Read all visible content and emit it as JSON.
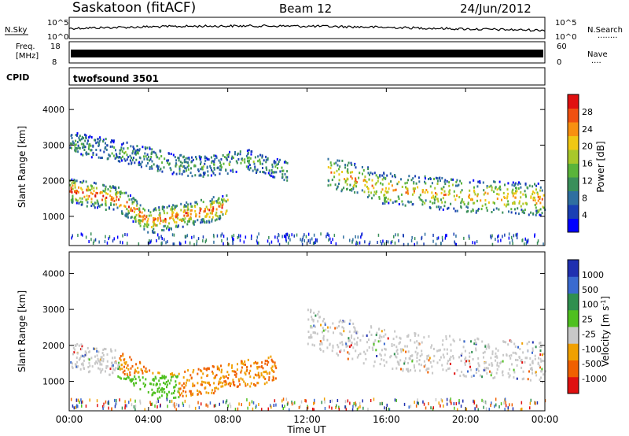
{
  "header": {
    "station": "Saskatoon (fitACF)",
    "beam": "Beam 12",
    "date": "24/Jun/2012"
  },
  "noise_panel": {
    "left_label": "N.Sky",
    "right_label": "N.Search",
    "right_legend": "........",
    "left_ticks": [
      "10^5",
      "10^0"
    ],
    "right_ticks": [
      "10^5",
      "10^0"
    ]
  },
  "freq_panel": {
    "left_label_top": "Freq.",
    "left_label_unit": "[MHz]",
    "left_ticks": [
      "18",
      "8"
    ],
    "right_label": "Nave",
    "right_legend": "....",
    "right_ticks": [
      "60",
      "0"
    ]
  },
  "cpid_panel": {
    "label": "CPID",
    "value": "twofsound 3501"
  },
  "chart_data": [
    {
      "type": "heatmap",
      "name": "Power",
      "ylabel": "Slant Range [km]",
      "ylim": [
        180,
        4600
      ],
      "yticks": [
        "1000",
        "2000",
        "3000",
        "4000"
      ],
      "colorbar_label": "Power [dB]",
      "colorbar_ticks": [
        "4",
        "8",
        "12",
        "16",
        "20",
        "24",
        "28"
      ],
      "colorbar_range": [
        0,
        32
      ],
      "colors": [
        "#0000ff",
        "#1a3fb4",
        "#2f6fa0",
        "#3a8f5a",
        "#5ab43a",
        "#a8c82a",
        "#f0c814",
        "#f89010",
        "#f05010",
        "#e01010"
      ],
      "echo_bands": [
        {
          "t": [
            0.0,
            2.5,
            4.0,
            6.0,
            8.0
          ],
          "range": [
            1750,
            1500,
            900,
            1100,
            1300
          ],
          "width": 350,
          "level": 0.7
        },
        {
          "t": [
            13.0,
            16.0,
            20.0,
            24.0
          ],
          "range": [
            2300,
            1800,
            1600,
            1500
          ],
          "width": 450,
          "level": 0.55
        },
        {
          "t": [
            0.0,
            3.0,
            6.0,
            9.0,
            11.0
          ],
          "range": [
            3100,
            2800,
            2400,
            2600,
            2300
          ],
          "width": 300,
          "level": 0.2
        }
      ]
    },
    {
      "type": "heatmap",
      "name": "Velocity",
      "ylabel": "Slant Range [km]",
      "ylim": [
        180,
        4600
      ],
      "yticks": [
        "1000",
        "2000",
        "3000",
        "4000"
      ],
      "colorbar_label": "Velocity [m s",
      "colorbar_label_exp": "-1",
      "colorbar_label_end": "]",
      "colorbar_ticks": [
        "1000",
        "500",
        "100",
        "25",
        "-25",
        "-100",
        "-500",
        "-1000"
      ],
      "colors": [
        "#2030b0",
        "#3a6ad0",
        "#2f8f4f",
        "#4fc020",
        "#c8c8c8",
        "#f0a000",
        "#f06000",
        "#e01010"
      ],
      "echo_bands": [
        {
          "t": [
            0.0,
            2.5,
            4.5,
            7.5,
            10.5
          ],
          "range": [
            1750,
            1500,
            900,
            1100,
            1400
          ],
          "width": 380
        },
        {
          "t": [
            12.0,
            16.0,
            20.0,
            24.0
          ],
          "range": [
            2500,
            1900,
            1700,
            1550
          ],
          "width": 550
        }
      ]
    }
  ],
  "x_axis": {
    "label": "Time UT",
    "ticks": [
      "00:00",
      "04:00",
      "08:00",
      "12:00",
      "16:00",
      "20:00",
      "00:00"
    ],
    "range_hours": [
      0,
      24
    ]
  }
}
